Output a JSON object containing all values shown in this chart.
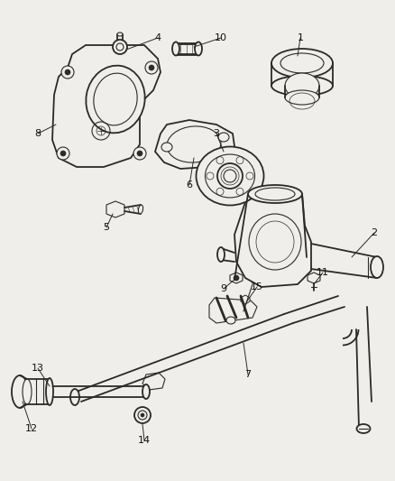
{
  "bg_color": "#f0eeeb",
  "line_color": "#2a2a2a",
  "text_color": "#111111",
  "fig_width": 4.38,
  "fig_height": 5.33,
  "lw_main": 1.3,
  "lw_thin": 0.8,
  "lw_thick": 2.0
}
